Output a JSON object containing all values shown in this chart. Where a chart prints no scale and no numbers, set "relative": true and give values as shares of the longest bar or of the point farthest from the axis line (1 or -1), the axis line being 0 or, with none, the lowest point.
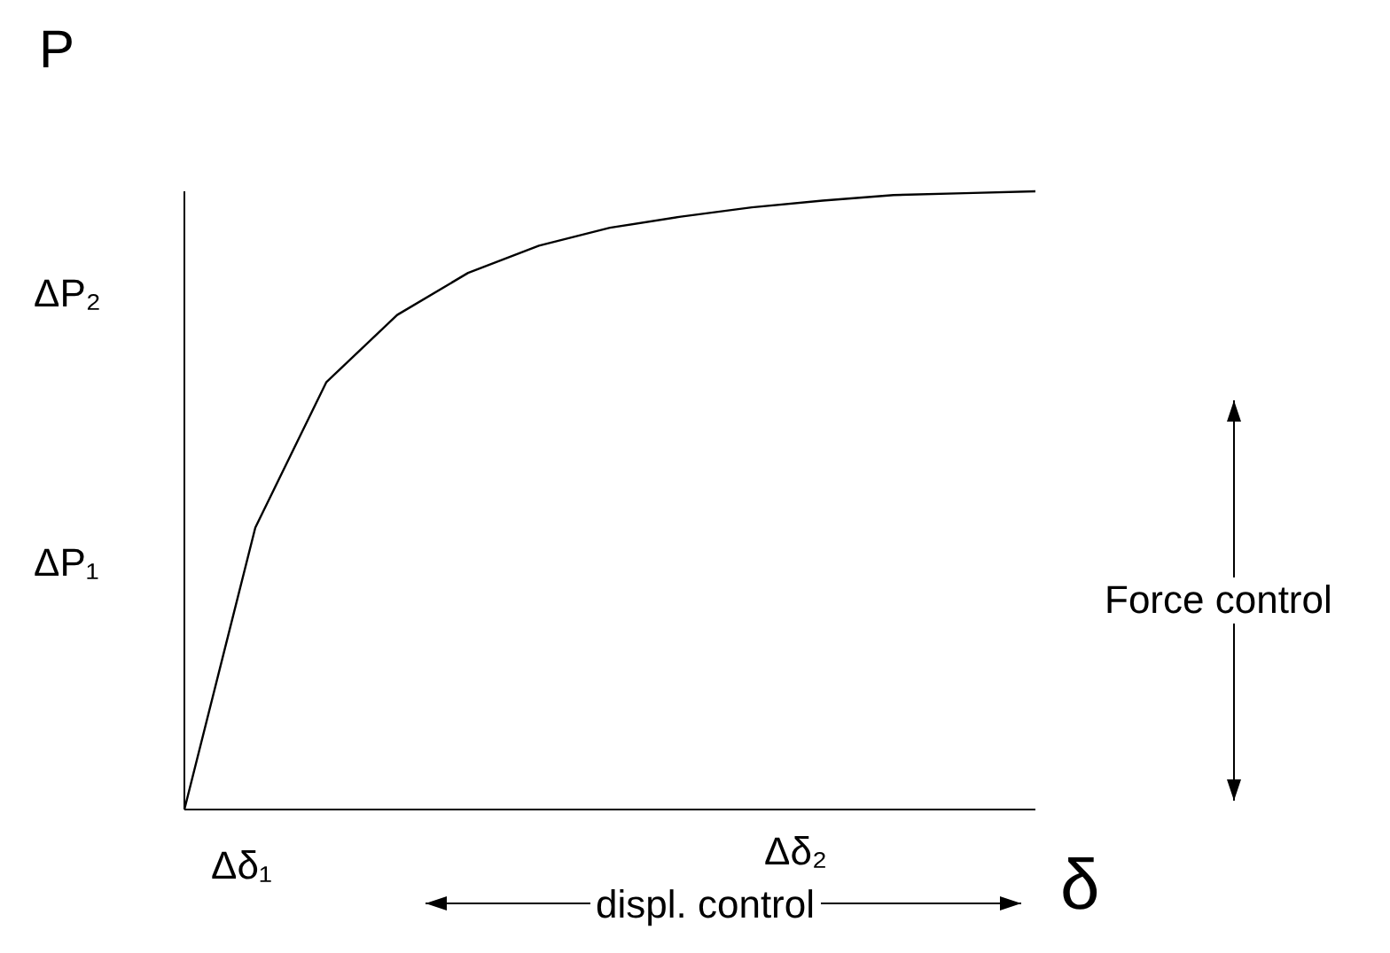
{
  "chart_data": {
    "type": "line",
    "relative": true,
    "xlabel": "δ",
    "ylabel": "P",
    "categories": [
      null,
      null,
      null,
      null,
      null,
      null,
      null,
      null,
      null,
      null,
      null,
      null,
      null
    ],
    "series": [
      {
        "color": "#000000",
        "values": [
          0,
          0.456,
          0.691,
          0.8,
          0.868,
          0.912,
          0.941,
          0.959,
          0.974,
          0.985,
          0.994,
          0.997,
          1
        ]
      }
    ],
    "marker": "none",
    "line_style": "solid",
    "grid": false,
    "legend": false,
    "annotations": [
      "ΔP₂",
      "ΔP₁",
      "Δδ₁",
      "Δδ₂",
      "Force control",
      "displ. control"
    ]
  }
}
